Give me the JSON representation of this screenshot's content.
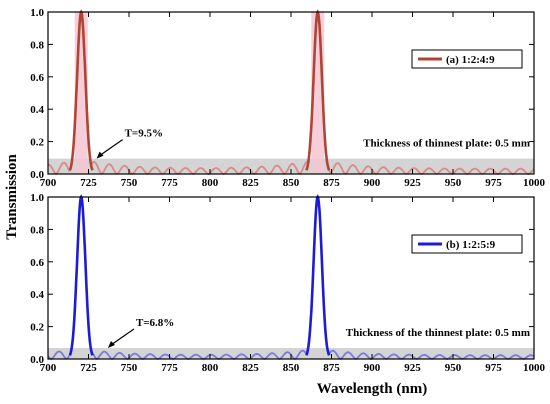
{
  "chart_data": [
    {
      "type": "line",
      "panel": "top",
      "x_range": [
        700,
        1000
      ],
      "y_range": [
        0,
        1.0
      ],
      "x_ticks": [
        700,
        725,
        750,
        775,
        800,
        825,
        850,
        875,
        900,
        925,
        950,
        975,
        1000
      ],
      "y_ticks": [
        0.0,
        0.2,
        0.4,
        0.6,
        0.8,
        1.0
      ],
      "peaks_nm": [
        720.5,
        866.5
      ],
      "peak_transmission": 1.0,
      "shaded_band_max": 0.095,
      "series": [
        {
          "name": "(a) 1:2:4:9",
          "color": "#b04535",
          "side_color": "#d98a8a"
        }
      ],
      "legend_position": "right",
      "annotation": {
        "text": "T=9.5%",
        "x": 730,
        "y": 0.095
      },
      "note": "Thickness of thinnest plate: 0.5 mm"
    },
    {
      "type": "line",
      "panel": "bottom",
      "x_range": [
        700,
        1000
      ],
      "y_range": [
        0,
        1.0
      ],
      "x_ticks": [
        700,
        725,
        750,
        775,
        800,
        825,
        850,
        875,
        900,
        925,
        950,
        975,
        1000
      ],
      "y_ticks": [
        0.0,
        0.2,
        0.4,
        0.6,
        0.8,
        1.0
      ],
      "peaks_nm": [
        720.5,
        866.5
      ],
      "peak_transmission": 1.0,
      "shaded_band_max": 0.068,
      "series": [
        {
          "name": "(b) 1:2:5:9",
          "color": "#1c1cd6",
          "side_color": "#7a7ae0"
        }
      ],
      "legend_position": "right",
      "annotation": {
        "text": "T=6.8%",
        "x": 737,
        "y": 0.068
      },
      "note": "Thickness of the thinnest plate: 0.5 mm"
    }
  ],
  "xlabel": "Wavelength (nm)",
  "ylabel": "Transmission"
}
